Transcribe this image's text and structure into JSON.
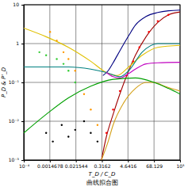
{
  "chart_data": {
    "type": "line",
    "title": "曲线拟合图",
    "x_label": "T_D / C_D",
    "y_label": "P_D & P'_D",
    "log": true,
    "grid": true,
    "xlim": [
      0.0001,
      1000
    ],
    "xticks": [
      {
        "value": 0.0001,
        "label": "10⁻⁴"
      },
      0.0014678,
      0.021544,
      0.3162,
      4.6416,
      68.129,
      {
        "value": 1000,
        "label": "10³"
      }
    ],
    "ylim": [
      0.001,
      10
    ],
    "yticks": [
      {
        "value": 0.001,
        "label": "10⁻³"
      },
      {
        "value": 0.01,
        "label": "10⁻²"
      },
      {
        "value": 0.1,
        "label": "10⁻¹"
      },
      1,
      10
    ],
    "series": [
      {
        "type": "line",
        "color": "#000080",
        "x": [
          0.35,
          0.6,
          1,
          2,
          5,
          10,
          30,
          100,
          300,
          1000
        ],
        "values": [
          0.15,
          0.2,
          0.32,
          0.65,
          1.6,
          3,
          5,
          6.3,
          7,
          7.3
        ]
      },
      {
        "type": "line",
        "color": "#a00000",
        "x": [
          0.3,
          0.5,
          1,
          2,
          5,
          10,
          30,
          100,
          300,
          1000
        ],
        "values": [
          0.001,
          0.004,
          0.015,
          0.05,
          0.2,
          0.5,
          1.5,
          3.5,
          5.5,
          6.5
        ]
      },
      {
        "type": "scatter",
        "marker": "circle",
        "color": "#ff0000",
        "x": [
          0.5,
          1,
          2,
          4,
          8,
          15,
          40,
          100,
          300
        ],
        "values": [
          0.005,
          0.02,
          0.06,
          0.15,
          0.35,
          0.8,
          2,
          3.8,
          5.5
        ]
      },
      {
        "type": "line",
        "color": "#e0c000",
        "x": [
          0.0001,
          0.001,
          0.01,
          0.1,
          0.5,
          1.5,
          5,
          20,
          100,
          1000
        ],
        "values": [
          2.5,
          1.5,
          0.8,
          0.35,
          0.18,
          0.15,
          0.25,
          0.5,
          0.8,
          0.9
        ]
      },
      {
        "type": "line",
        "color": "#008080",
        "x": [
          0.0001,
          0.001,
          0.01,
          0.1,
          0.5,
          2,
          5,
          20,
          100,
          1000
        ],
        "values": [
          0.25,
          0.25,
          0.25,
          0.22,
          0.18,
          0.14,
          0.2,
          0.6,
          1,
          1
        ]
      },
      {
        "type": "line",
        "color": "#c000c0",
        "x": [
          0.5,
          1,
          2,
          5,
          10,
          30,
          100,
          1000
        ],
        "values": [
          0.18,
          0.14,
          0.13,
          0.17,
          0.22,
          0.3,
          0.32,
          0.33
        ]
      },
      {
        "type": "line",
        "color": "#d4a017",
        "x": [
          0.3,
          0.6,
          1,
          3,
          10,
          30,
          68,
          200,
          1000
        ],
        "values": [
          0.001,
          0.003,
          0.008,
          0.03,
          0.07,
          0.1,
          0.1,
          0.08,
          0.06
        ]
      },
      {
        "type": "line",
        "color": "#00a000",
        "x": [
          0.0001,
          0.001,
          0.01,
          0.1,
          1,
          10,
          68,
          300,
          1000
        ],
        "values": [
          0.005,
          0.015,
          0.04,
          0.08,
          0.12,
          0.13,
          0.1,
          0.07,
          0.05
        ]
      },
      {
        "type": "scatter",
        "marker": "circle",
        "color": "#ff9900",
        "x": [
          0.0015,
          0.003,
          0.006,
          0.01,
          0.02,
          0.05,
          0.1,
          0.2
        ],
        "values": [
          2,
          1.2,
          0.6,
          0.4,
          0.2,
          0.05,
          0.02,
          0.008
        ]
      },
      {
        "type": "scatter",
        "marker": "circle",
        "color": "#33cc33",
        "x": [
          0.0005,
          0.001,
          0.003,
          0.006,
          0.01,
          0.02
        ],
        "values": [
          0.6,
          0.5,
          0.4,
          0.3,
          0.2,
          0.1
        ]
      },
      {
        "type": "scatter",
        "marker": "circle",
        "color": "#000000",
        "x": [
          0.001,
          0.002,
          0.005,
          0.01,
          0.02,
          0.05,
          0.1,
          0.2
        ],
        "values": [
          0.005,
          0.003,
          0.008,
          0.004,
          0.006,
          0.01,
          0.005,
          0.003
        ]
      }
    ]
  }
}
